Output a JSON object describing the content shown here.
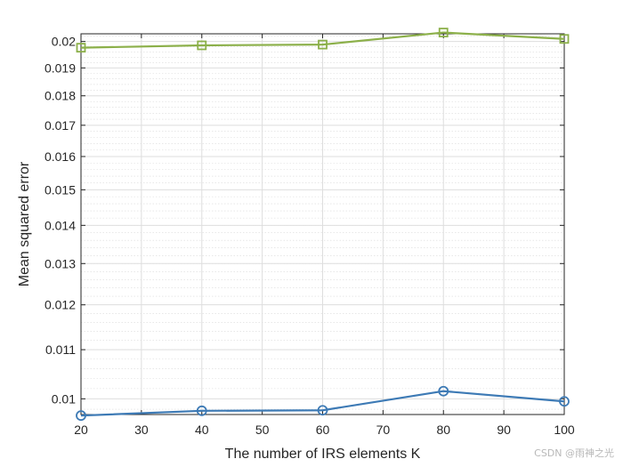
{
  "chart_data": {
    "type": "line",
    "title": "",
    "xlabel": "The number of IRS elements K",
    "ylabel": "Mean squared error",
    "x": [
      20,
      40,
      60,
      80,
      100
    ],
    "xlim": [
      20,
      100
    ],
    "xticks": [
      20,
      30,
      40,
      50,
      60,
      70,
      80,
      90,
      100
    ],
    "y_scale": "log",
    "ylim": [
      0.0097,
      0.0203
    ],
    "yticks": [
      0.01,
      0.011,
      0.012,
      0.013,
      0.014,
      0.015,
      0.016,
      0.017,
      0.018,
      0.019,
      0.02
    ],
    "grid": "major and minor",
    "legend": "none",
    "series": [
      {
        "values": [
          0.01976,
          0.01985,
          0.01988,
          0.02035,
          0.0201
        ],
        "color": "#8cb04a",
        "marker": "square"
      },
      {
        "values": [
          0.00968,
          0.00977,
          0.00978,
          0.01015,
          0.00995
        ],
        "color": "#3d7ab5",
        "marker": "circle"
      }
    ]
  },
  "watermark": "CSDN @雨神之光"
}
